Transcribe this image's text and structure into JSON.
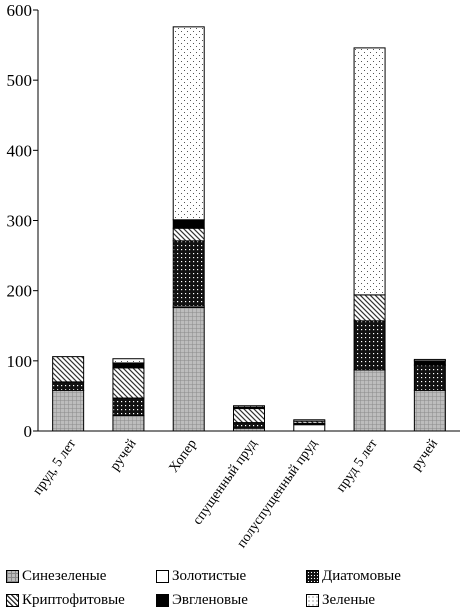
{
  "chart_data": {
    "type": "bar",
    "stacked": true,
    "title": "",
    "xlabel": "",
    "ylabel": "",
    "ylim": [
      0,
      600
    ],
    "yticks": [
      "0",
      "100",
      "200",
      "300",
      "400",
      "500",
      "600"
    ],
    "grid": false,
    "legend_position": "bottom",
    "categories": [
      "пруд, 5 лет",
      "ручей",
      "Хопер",
      "спущенный пруд",
      "полуспущенный пруд",
      "пруд 5 лет",
      "ручей"
    ],
    "series": [
      {
        "name": "Синезеленые",
        "pattern": "grid",
        "values": [
          58,
          22,
          176,
          4,
          0,
          87,
          58
        ]
      },
      {
        "name": "Золотистые",
        "pattern": "white",
        "values": [
          0,
          0,
          2,
          0,
          9,
          0,
          0
        ]
      },
      {
        "name": "Диатомовые",
        "pattern": "dots-dark",
        "values": [
          12,
          25,
          93,
          8,
          2,
          70,
          36
        ]
      },
      {
        "name": "Криптофитовые",
        "pattern": "hatch",
        "values": [
          36,
          43,
          18,
          20,
          3,
          37,
          0
        ]
      },
      {
        "name": "Эвгленовые",
        "pattern": "black",
        "values": [
          0,
          7,
          12,
          2,
          0,
          0,
          6
        ]
      },
      {
        "name": "Зеленые",
        "pattern": "dots-light",
        "values": [
          0,
          6,
          275,
          2,
          2,
          352,
          2
        ]
      }
    ]
  }
}
